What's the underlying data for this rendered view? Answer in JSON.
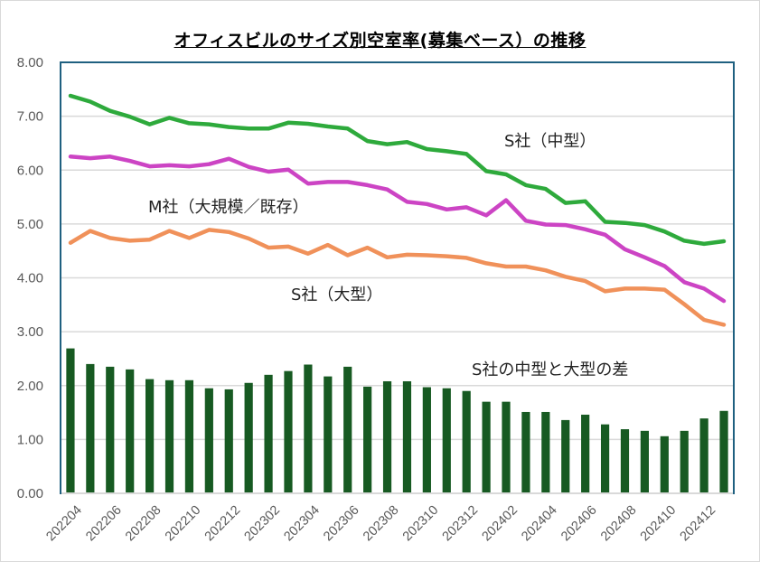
{
  "chart_data": {
    "type": "line+bar",
    "title": "オフィスビルのサイズ別空室率(募集ベース）の推移",
    "xlabel": "",
    "ylabel": "",
    "ylim": [
      0,
      8
    ],
    "yticks": [
      "0.00",
      "1.00",
      "2.00",
      "3.00",
      "4.00",
      "5.00",
      "6.00",
      "7.00",
      "8.00"
    ],
    "grid": true,
    "x": [
      "202204",
      "202205",
      "202206",
      "202207",
      "202208",
      "202209",
      "202210",
      "202211",
      "202212",
      "202301",
      "202302",
      "202303",
      "202304",
      "202305",
      "202306",
      "202307",
      "202308",
      "202309",
      "202310",
      "202311",
      "202312",
      "202401",
      "202402",
      "202403",
      "202404",
      "202405",
      "202406",
      "202407",
      "202408",
      "202409",
      "202410",
      "202411",
      "202412",
      "202501"
    ],
    "xtick_labels": [
      "202204",
      "202206",
      "202208",
      "202210",
      "202212",
      "202302",
      "202304",
      "202306",
      "202308",
      "202310",
      "202312",
      "202402",
      "202404",
      "202406",
      "202408",
      "202410",
      "202412"
    ],
    "series": [
      {
        "name": "S社（中型）",
        "kind": "line",
        "color": "#2eaa3c",
        "values": [
          7.38,
          7.27,
          7.1,
          6.99,
          6.85,
          6.97,
          6.87,
          6.85,
          6.8,
          6.77,
          6.77,
          6.88,
          6.86,
          6.81,
          6.77,
          6.54,
          6.48,
          6.52,
          6.39,
          6.35,
          6.3,
          5.98,
          5.92,
          5.72,
          5.65,
          5.39,
          5.42,
          5.04,
          5.02,
          4.98,
          4.86,
          4.69,
          4.63,
          4.68
        ]
      },
      {
        "name": "M社（大規模／既存）",
        "kind": "line",
        "color": "#cc44c4",
        "values": [
          6.25,
          6.22,
          6.25,
          6.17,
          6.07,
          6.09,
          6.07,
          6.11,
          6.21,
          6.06,
          5.97,
          6.01,
          5.75,
          5.78,
          5.78,
          5.72,
          5.64,
          5.41,
          5.37,
          5.27,
          5.31,
          5.16,
          5.44,
          5.06,
          4.99,
          4.98,
          4.9,
          4.8,
          4.53,
          4.38,
          4.22,
          3.92,
          3.8,
          3.57
        ]
      },
      {
        "name": "S社（大型）",
        "kind": "line",
        "color": "#f0915a",
        "values": [
          4.65,
          4.87,
          4.74,
          4.69,
          4.71,
          4.87,
          4.74,
          4.89,
          4.85,
          4.73,
          4.56,
          4.58,
          4.45,
          4.61,
          4.42,
          4.56,
          4.38,
          4.43,
          4.42,
          4.4,
          4.37,
          4.27,
          4.21,
          4.21,
          4.14,
          4.02,
          3.94,
          3.75,
          3.8,
          3.8,
          3.78,
          3.51,
          3.22,
          3.13
        ]
      },
      {
        "name": "S社の中型と大型の差",
        "kind": "bar",
        "color": "#175a22",
        "values": [
          2.69,
          2.4,
          2.35,
          2.3,
          2.12,
          2.1,
          2.1,
          1.95,
          1.93,
          2.05,
          2.2,
          2.27,
          2.39,
          2.17,
          2.35,
          1.98,
          2.08,
          2.08,
          1.97,
          1.95,
          1.9,
          1.7,
          1.7,
          1.51,
          1.51,
          1.36,
          1.46,
          1.28,
          1.19,
          1.16,
          1.06,
          1.16,
          1.39,
          1.53
        ]
      }
    ],
    "annotations": [
      {
        "text": "S社（中型）",
        "series": 0
      },
      {
        "text": "M社（大規模／既存）",
        "series": 1
      },
      {
        "text": "S社（大型）",
        "series": 2
      },
      {
        "text": "S社の中型と大型の差",
        "series": 3
      }
    ],
    "colors": {
      "plot_border": "#1f6080",
      "grid": "#d9d9d9",
      "tick_text": "#595959"
    }
  }
}
